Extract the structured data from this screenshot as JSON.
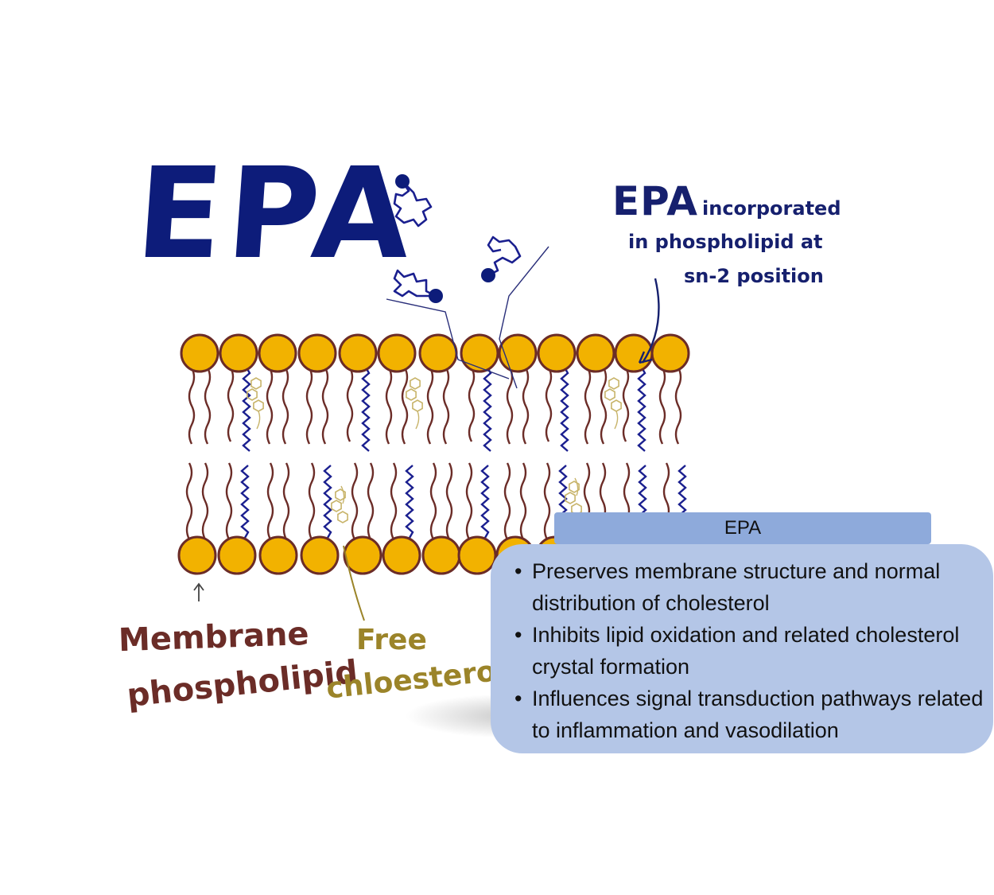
{
  "title": "EPA",
  "annotation": {
    "epa": "EPA",
    "line1": "incorporated",
    "line2": "in phospholipid at",
    "line3": "sn-2 position"
  },
  "labels": {
    "membrane_line1": "Membrane",
    "membrane_line2": "phospholipid",
    "cholesterol_line1": "Free",
    "cholesterol_line2": "chloesterol"
  },
  "info_box": {
    "header": "EPA",
    "bullets": [
      "Preserves membrane structure and normal distribution of cholesterol",
      "Inhibits lipid oxidation and related cholesterol crystal formation",
      "Influences signal transduction pathways related to inflammation and vasodilation"
    ]
  },
  "colors": {
    "head": "#f2b200",
    "head_outline": "#6b2c27",
    "tail": "#6b2c27",
    "epa_tail": "#1a1f8f",
    "cholesterol": "#c8b46a",
    "box_header": "#8eaadb",
    "box": "#b4c6e7"
  }
}
